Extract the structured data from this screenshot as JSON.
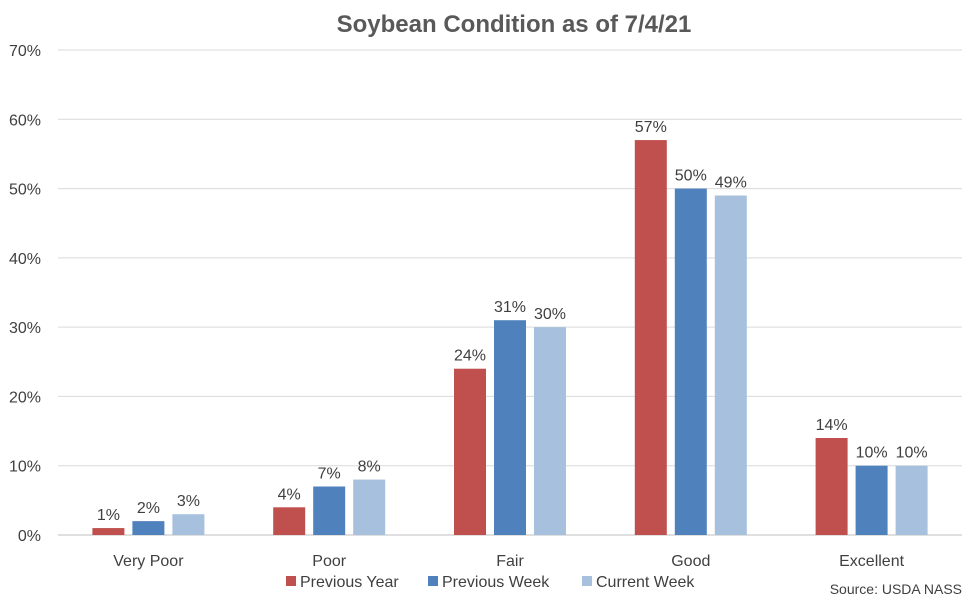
{
  "chart_data": {
    "type": "bar",
    "title": "Soybean Condition as of 7/4/21",
    "categories": [
      "Very Poor",
      "Poor",
      "Fair",
      "Good",
      "Excellent"
    ],
    "series": [
      {
        "name": "Previous Year",
        "color": "#C0504D",
        "values": [
          1,
          4,
          24,
          57,
          14
        ],
        "labels": [
          "1%",
          "4%",
          "24%",
          "57%",
          "14%"
        ]
      },
      {
        "name": "Previous Week",
        "color": "#4F81BD",
        "values": [
          2,
          7,
          31,
          50,
          10
        ],
        "labels": [
          "2%",
          "7%",
          "31%",
          "50%",
          "10%"
        ]
      },
      {
        "name": "Current Week",
        "color": "#A7C0DE",
        "values": [
          3,
          8,
          30,
          49,
          10
        ],
        "labels": [
          "3%",
          "8%",
          "30%",
          "49%",
          "10%"
        ]
      }
    ],
    "ylim": [
      0,
      70
    ],
    "yticks": [
      0,
      10,
      20,
      30,
      40,
      50,
      60,
      70
    ],
    "ytick_labels": [
      "0%",
      "10%",
      "20%",
      "30%",
      "40%",
      "50%",
      "60%",
      "70%"
    ],
    "grid": true,
    "legend": "bottom",
    "source": "Source: USDA NASS"
  }
}
